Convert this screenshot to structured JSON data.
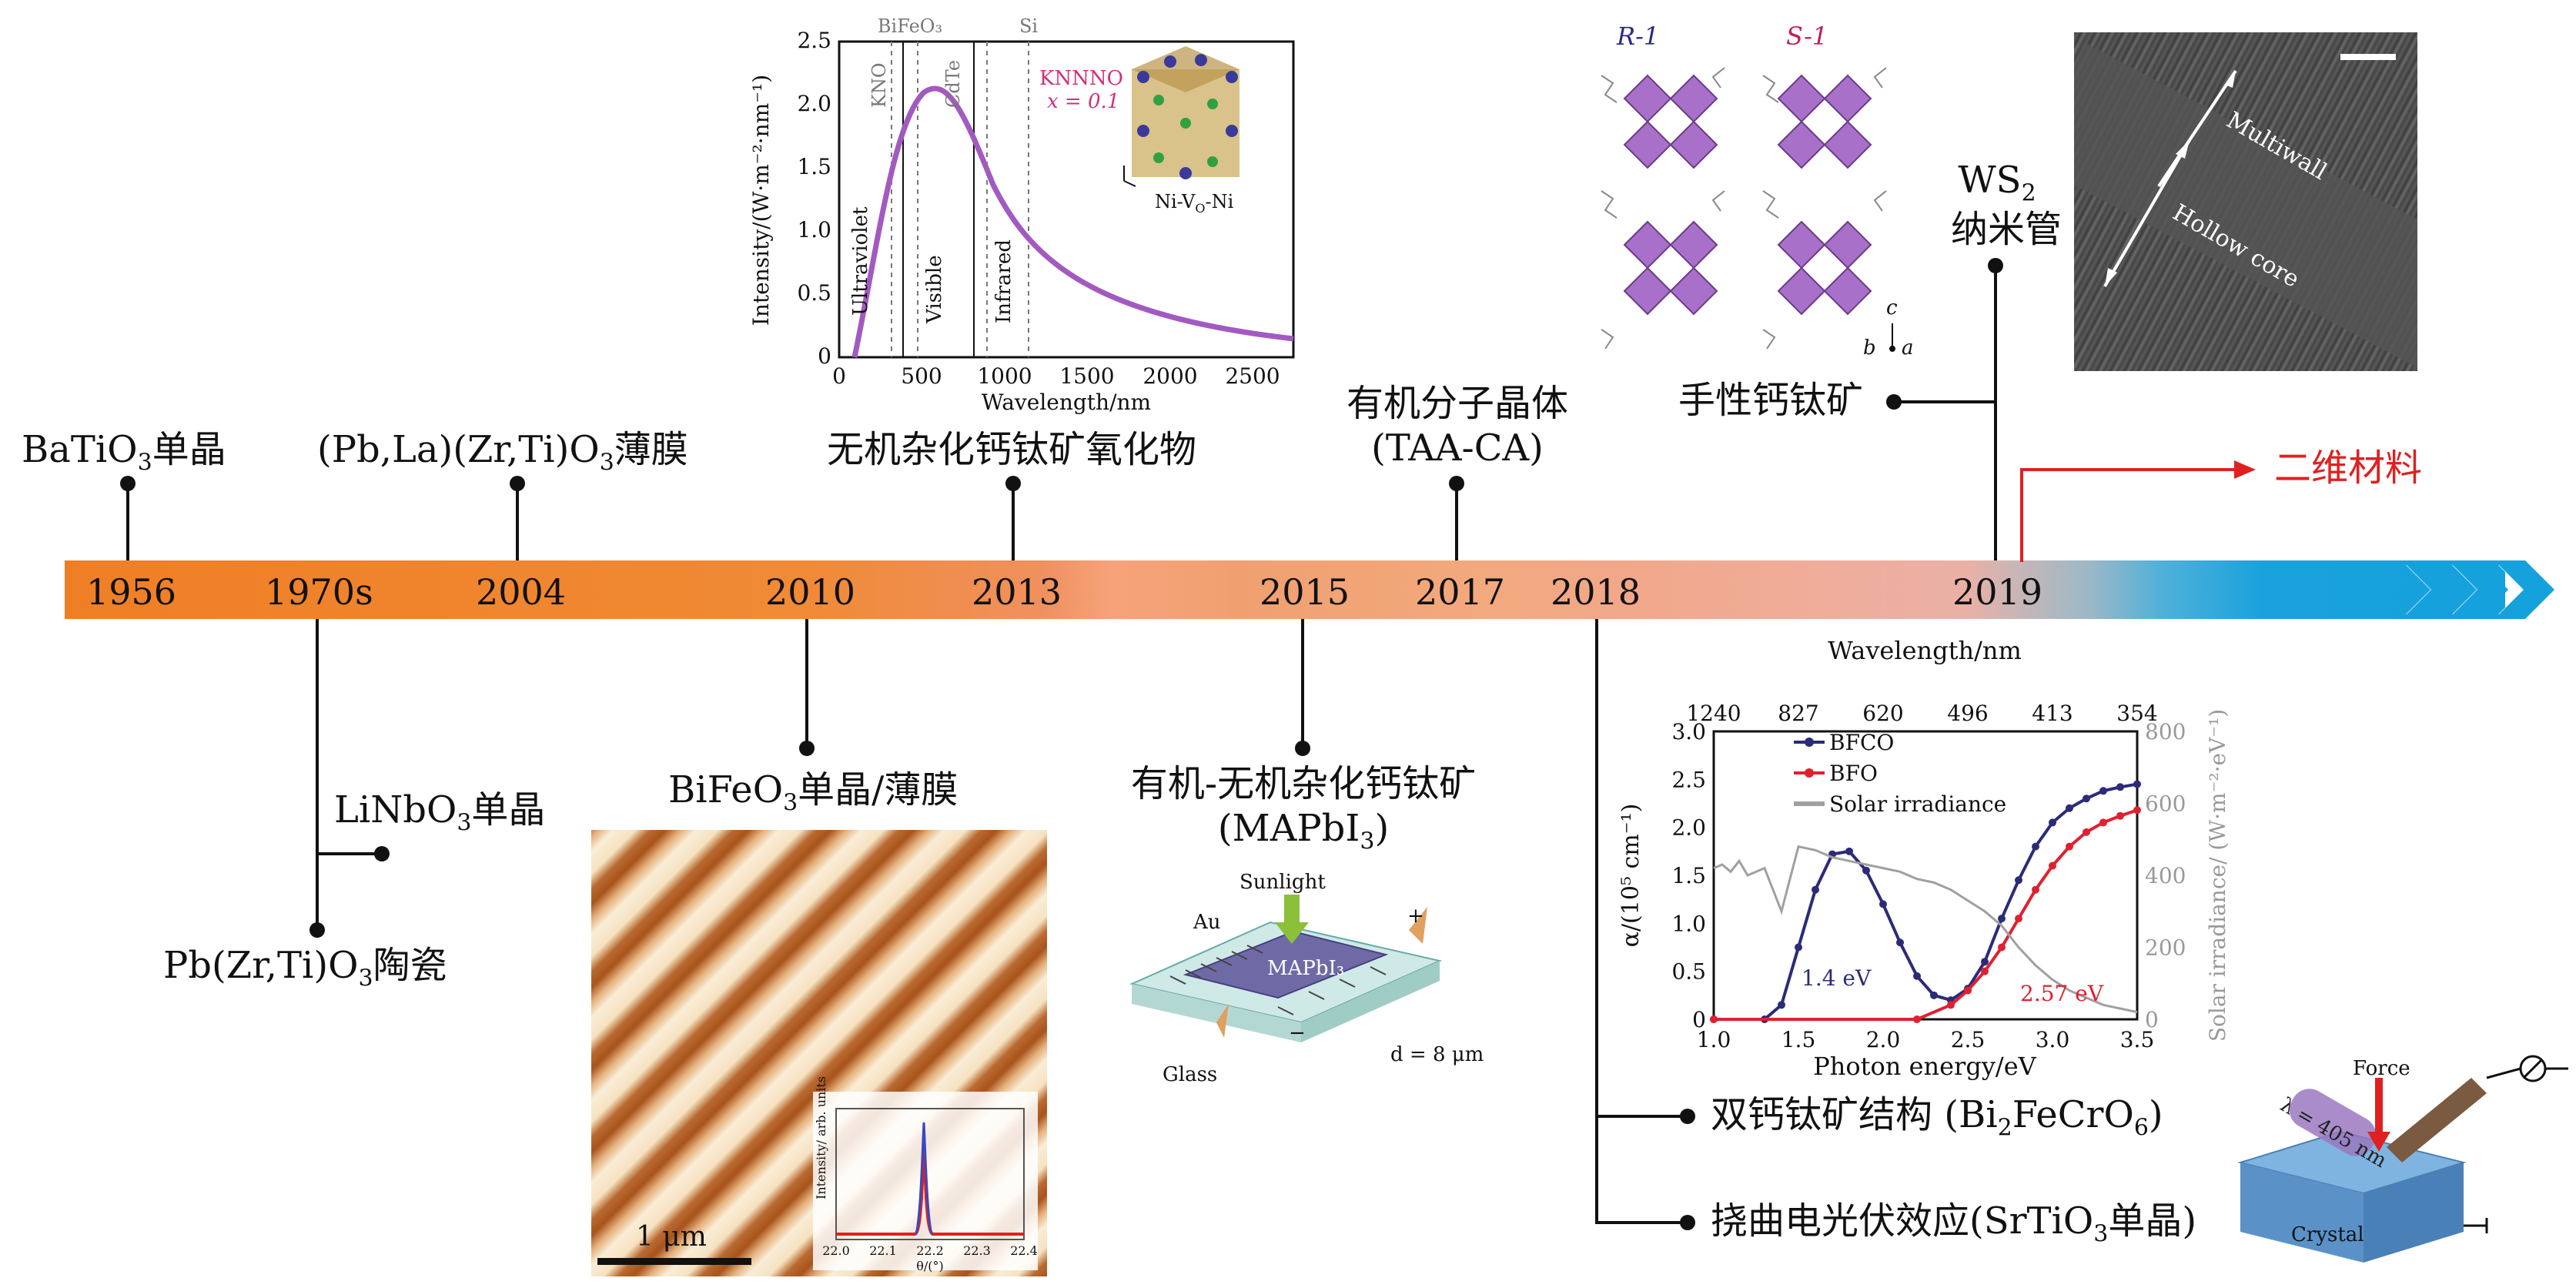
{
  "timeline": {
    "years": [
      "1956",
      "1970s",
      "2004",
      "2010",
      "2013",
      "2015",
      "2017",
      "2018",
      "2019"
    ],
    "colors": {
      "bar_start": "#ef8228",
      "bar_end": "#f3a77a",
      "tail": "#1a9fd8"
    }
  },
  "milestones": {
    "m1956": {
      "main": "BaTiO",
      "sub": "3",
      "tail": "单晶"
    },
    "m1970s_a": {
      "main": "LiNbO",
      "sub": "3",
      "tail": "单晶"
    },
    "m1970s_b": {
      "main": "Pb(Zr,Ti)O",
      "sub": "3",
      "tail": "陶瓷"
    },
    "m2004": {
      "main": "(Pb,La)(Zr,Ti)O",
      "sub": "3",
      "tail": "薄膜"
    },
    "m2010": {
      "main": "BiFeO",
      "sub": "3",
      "tail": "单晶/薄膜"
    },
    "m2013": {
      "text": "无机杂化钙钛矿氧化物"
    },
    "m2015": {
      "line1": "有机-无机杂化钙钛矿",
      "line2_main": "(MAPbI",
      "line2_sub": "3",
      "line2_tail": ")"
    },
    "m2017": {
      "line1": "有机分子晶体",
      "line2": "(TAA-CA)"
    },
    "m2018_a": {
      "text": "双钙钛矿结构 (Bi",
      "sub1": "2",
      "mid": "FeCrO",
      "sub2": "6",
      "tail": ")"
    },
    "m2018_b": {
      "main": "挠曲电光伏效应(SrTiO",
      "sub": "3",
      "tail": "单晶)"
    },
    "m2019_chiral": {
      "text": "手性钙钛矿"
    },
    "m2019_ws2": {
      "main": "WS",
      "sub": "2",
      "line2": "纳米管"
    },
    "m2019_2d": {
      "text": "二维材料",
      "color": "#e02020"
    }
  },
  "spectrum_panel": {
    "ylabel": "Intensity/(W·m⁻²·nm⁻¹)",
    "xlabel": "Wavelength/nm",
    "x_ticks": [
      "0",
      "500",
      "1000",
      "1500",
      "2000",
      "2500"
    ],
    "y_ticks": [
      "0",
      "0.5",
      "1.0",
      "1.5",
      "2.0",
      "2.5"
    ],
    "top_labels": [
      "BiFeO₃",
      "Si"
    ],
    "band_labels": [
      "KNO",
      "CdTe",
      "Ultraviolet",
      "Visible",
      "Infrared"
    ],
    "knnno": "KNNNO",
    "knnno_x": "x = 0.1",
    "inset_label": "Ni-V",
    "inset_sub": "O",
    "inset_tail": "-Ni"
  },
  "chiral_panel": {
    "r_label": "R-1",
    "s_label": "S-1",
    "axes": [
      "c",
      "b",
      "a"
    ]
  },
  "tem_panel": {
    "labels": [
      "Multiwall",
      "Hollow core"
    ]
  },
  "domain_panel": {
    "scale": "1 μm",
    "inset_ylabel": "Intensity/ arb. units",
    "inset_xlabel": "θ/(°)",
    "inset_ticks": [
      "22.0",
      "22.1",
      "22.2",
      "22.3",
      "22.4"
    ]
  },
  "device_panel": {
    "sunlight": "Sunlight",
    "au": "Au",
    "mapbi": "MAPbI₃",
    "glass": "Glass",
    "gap": "d = 8 μm",
    "plus": "+",
    "minus": "−"
  },
  "chart_data": {
    "type": "line",
    "title": "",
    "xlabel": "Photon energy/eV",
    "x2label": "Wavelength/nm",
    "ylabel": "α/(10⁵ cm⁻¹)",
    "y2label": "Solar irradiance/ (W·m⁻²·eV⁻¹)",
    "xlim": [
      1.0,
      3.5
    ],
    "ylim": [
      0,
      3.0
    ],
    "y2lim": [
      0,
      800
    ],
    "x_ticks": [
      "1.0",
      "1.5",
      "2.0",
      "2.5",
      "3.0",
      "3.5"
    ],
    "y_ticks": [
      "0",
      "0.5",
      "1.0",
      "1.5",
      "2.0",
      "2.5",
      "3.0"
    ],
    "y2_ticks": [
      "0",
      "200",
      "400",
      "600",
      "800"
    ],
    "x2_ticks": [
      "1240",
      "827",
      "620",
      "496",
      "413",
      "354"
    ],
    "legend": "top-left",
    "series": [
      {
        "name": "BFCO",
        "color": "#2b2b78",
        "x": [
          1.0,
          1.3,
          1.4,
          1.5,
          1.6,
          1.7,
          1.8,
          1.9,
          2.0,
          2.1,
          2.2,
          2.3,
          2.4,
          2.5,
          2.6,
          2.7,
          2.8,
          2.9,
          3.0,
          3.1,
          3.2,
          3.3,
          3.4,
          3.5
        ],
        "y": [
          0,
          0,
          0.15,
          0.75,
          1.35,
          1.72,
          1.75,
          1.55,
          1.2,
          0.8,
          0.45,
          0.25,
          0.2,
          0.32,
          0.6,
          1.05,
          1.45,
          1.8,
          2.05,
          2.2,
          2.3,
          2.38,
          2.42,
          2.45
        ]
      },
      {
        "name": "BFO",
        "color": "#e02030",
        "x": [
          1.0,
          2.2,
          2.4,
          2.5,
          2.6,
          2.7,
          2.8,
          2.9,
          3.0,
          3.1,
          3.2,
          3.3,
          3.4,
          3.5
        ],
        "y": [
          0,
          0,
          0.15,
          0.3,
          0.5,
          0.75,
          1.05,
          1.35,
          1.6,
          1.8,
          1.95,
          2.05,
          2.12,
          2.18
        ]
      },
      {
        "name": "Solar irradiance",
        "color": "#a0a0a0",
        "axis": "y2",
        "x": [
          1.0,
          1.05,
          1.1,
          1.15,
          1.2,
          1.3,
          1.4,
          1.5,
          1.6,
          1.7,
          1.8,
          1.9,
          2.0,
          2.1,
          2.2,
          2.3,
          2.4,
          2.5,
          2.6,
          2.7,
          2.8,
          2.9,
          3.0,
          3.1,
          3.2,
          3.3,
          3.4,
          3.5
        ],
        "y": [
          420,
          430,
          410,
          440,
          400,
          420,
          300,
          480,
          470,
          450,
          440,
          430,
          420,
          410,
          390,
          380,
          360,
          330,
          300,
          260,
          200,
          150,
          110,
          80,
          60,
          40,
          30,
          20
        ]
      }
    ],
    "annotations": [
      "1.4 eV",
      "2.57 eV"
    ]
  },
  "flexo_panel": {
    "force": "Force",
    "lambda": "λ = 405 nm",
    "crystal": "Crystal"
  }
}
